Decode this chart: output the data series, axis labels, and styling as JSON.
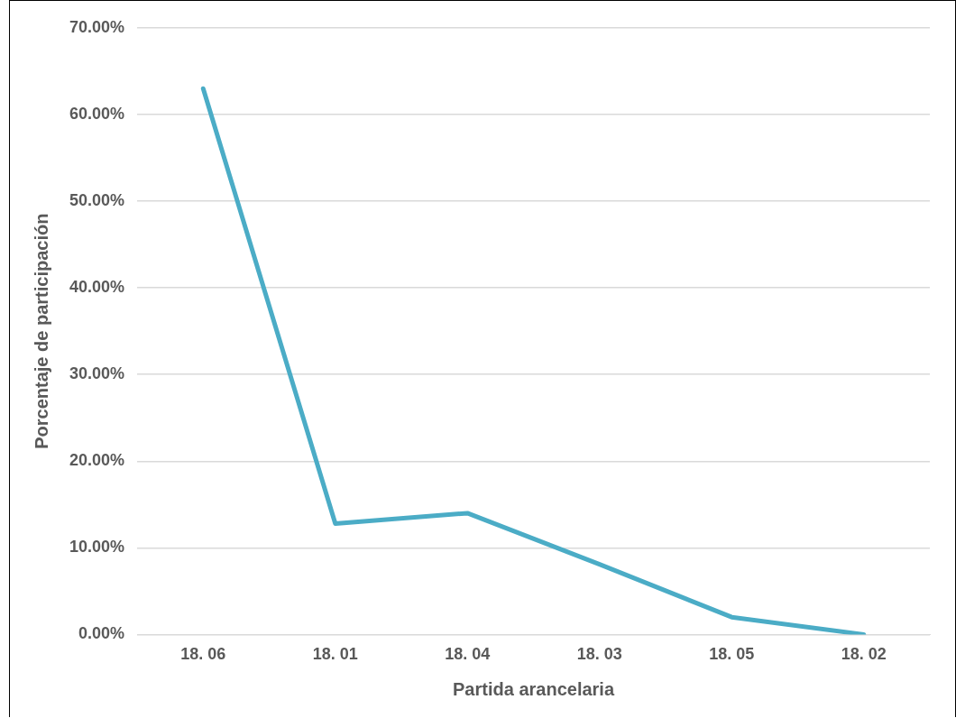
{
  "chart_data": {
    "type": "line",
    "xlabel": "Partida arancelaria",
    "ylabel": "Porcentaje de participación",
    "categories": [
      "18. 06",
      "18. 01",
      "18. 04",
      "18. 03",
      "18. 05",
      "18. 02"
    ],
    "series": [
      {
        "color": "#4bacc6",
        "values": [
          63,
          12.8,
          14,
          8.1,
          2,
          0
        ]
      }
    ],
    "ylim": [
      0,
      70
    ],
    "yticks": [
      {
        "value": 0,
        "label": "0.00%"
      },
      {
        "value": 10,
        "label": "10.00%"
      },
      {
        "value": 20,
        "label": "20.00%"
      },
      {
        "value": 30,
        "label": "30.00%"
      },
      {
        "value": 40,
        "label": "40.00%"
      },
      {
        "value": 50,
        "label": "50.00%"
      },
      {
        "value": 60,
        "label": "60.00%"
      },
      {
        "value": 70,
        "label": "70.00%"
      }
    ],
    "grid": "y",
    "legend": false,
    "marker": "none",
    "line_style": "solid"
  }
}
